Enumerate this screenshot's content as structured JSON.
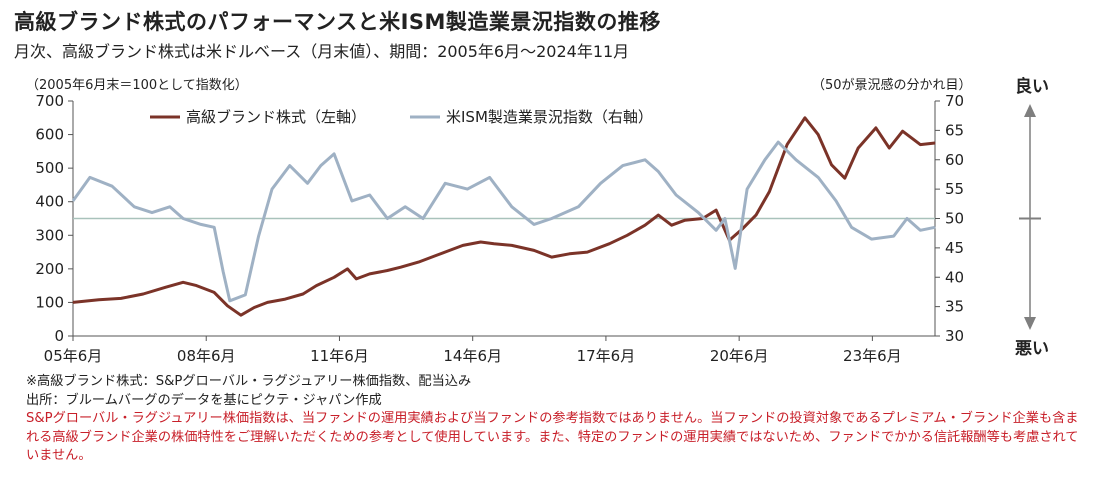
{
  "header": {
    "title": "高級ブランド株式のパフォーマンスと米ISM製造業景況指数の推移",
    "subtitle": "月次、高級ブランド株式は米ドルベース（月末値）、期間：2005年6月～2024年11月"
  },
  "axis_notes": {
    "left": "（2005年6月末＝100として指数化）",
    "right": "（50が景況感の分かれ目）",
    "good": "良い",
    "bad": "悪い"
  },
  "notes": {
    "line1": "※高級ブランド株式：S&Pグローバル・ラグジュアリー株価指数、配当込み",
    "line2": "出所：ブルームバーグのデータを基にピクテ・ジャパン作成",
    "disclaimer": "S&Pグローバル・ラグジュアリー株価指数は、当ファンドの運用実績および当ファンドの参考指数ではありません。当ファンドの投資対象であるプレミアム・ブランド企業も含まれる高級ブランド企業の株価特性をご理解いただくための参考として使用しています。また、特定のファンドの運用実績ではないため、ファンドでかかる信託報酬等も考慮されていません。"
  },
  "colors": {
    "luxury": "#7b3328",
    "ism": "#9fb1c4",
    "refline": "#a9c2bb",
    "arrow": "#7f7f7f"
  },
  "chart_data": {
    "type": "line",
    "x_start": "2005-06",
    "x_end": "2024-11",
    "x_ticks": [
      {
        "label": "05年6月",
        "t": 2005.42
      },
      {
        "label": "08年6月",
        "t": 2008.42
      },
      {
        "label": "11年6月",
        "t": 2011.42
      },
      {
        "label": "14年6月",
        "t": 2014.42
      },
      {
        "label": "17年6月",
        "t": 2017.42
      },
      {
        "label": "20年6月",
        "t": 2020.42
      },
      {
        "label": "23年6月",
        "t": 2023.42
      }
    ],
    "y_left": {
      "min": 0,
      "max": 700,
      "ticks": [
        0,
        100,
        200,
        300,
        400,
        500,
        600,
        700
      ]
    },
    "y_right": {
      "min": 30,
      "max": 70,
      "ticks": [
        30,
        35,
        40,
        45,
        50,
        55,
        60,
        65,
        70
      ]
    },
    "reference_line": {
      "axis": "right",
      "value": 50
    },
    "grid": false,
    "legend_position": "top-left",
    "series": [
      {
        "name": "高級ブランド株式（左軸）",
        "axis": "left",
        "points": [
          [
            2005.42,
            100
          ],
          [
            2006.0,
            108
          ],
          [
            2006.5,
            112
          ],
          [
            2007.0,
            125
          ],
          [
            2007.5,
            145
          ],
          [
            2007.9,
            160
          ],
          [
            2008.2,
            150
          ],
          [
            2008.6,
            130
          ],
          [
            2008.9,
            90
          ],
          [
            2009.2,
            62
          ],
          [
            2009.5,
            85
          ],
          [
            2009.8,
            100
          ],
          [
            2010.2,
            110
          ],
          [
            2010.6,
            125
          ],
          [
            2010.9,
            150
          ],
          [
            2011.3,
            175
          ],
          [
            2011.6,
            200
          ],
          [
            2011.8,
            170
          ],
          [
            2012.1,
            185
          ],
          [
            2012.5,
            195
          ],
          [
            2012.8,
            205
          ],
          [
            2013.2,
            220
          ],
          [
            2013.6,
            240
          ],
          [
            2013.9,
            255
          ],
          [
            2014.2,
            270
          ],
          [
            2014.6,
            280
          ],
          [
            2014.9,
            275
          ],
          [
            2015.3,
            270
          ],
          [
            2015.8,
            255
          ],
          [
            2016.2,
            235
          ],
          [
            2016.6,
            245
          ],
          [
            2017.0,
            250
          ],
          [
            2017.5,
            275
          ],
          [
            2017.9,
            300
          ],
          [
            2018.3,
            330
          ],
          [
            2018.6,
            360
          ],
          [
            2018.9,
            330
          ],
          [
            2019.2,
            345
          ],
          [
            2019.6,
            350
          ],
          [
            2019.9,
            375
          ],
          [
            2020.2,
            285
          ],
          [
            2020.5,
            320
          ],
          [
            2020.8,
            360
          ],
          [
            2021.1,
            430
          ],
          [
            2021.5,
            570
          ],
          [
            2021.9,
            650
          ],
          [
            2022.2,
            600
          ],
          [
            2022.5,
            510
          ],
          [
            2022.8,
            470
          ],
          [
            2023.1,
            560
          ],
          [
            2023.5,
            620
          ],
          [
            2023.8,
            560
          ],
          [
            2024.1,
            610
          ],
          [
            2024.5,
            570
          ],
          [
            2024.83,
            575
          ]
        ]
      },
      {
        "name": "米ISM製造業景況指数（右軸）",
        "axis": "right",
        "points": [
          [
            2005.42,
            53.0
          ],
          [
            2005.8,
            57.0
          ],
          [
            2006.3,
            55.5
          ],
          [
            2006.8,
            52.0
          ],
          [
            2007.2,
            51.0
          ],
          [
            2007.6,
            52.0
          ],
          [
            2007.9,
            50.0
          ],
          [
            2008.3,
            49.0
          ],
          [
            2008.6,
            48.5
          ],
          [
            2008.8,
            41.0
          ],
          [
            2008.95,
            36.0
          ],
          [
            2009.3,
            37.0
          ],
          [
            2009.6,
            47.0
          ],
          [
            2009.9,
            55.0
          ],
          [
            2010.3,
            59.0
          ],
          [
            2010.7,
            56.0
          ],
          [
            2011.0,
            59.0
          ],
          [
            2011.3,
            61.0
          ],
          [
            2011.7,
            53.0
          ],
          [
            2012.1,
            54.0
          ],
          [
            2012.5,
            50.0
          ],
          [
            2012.9,
            52.0
          ],
          [
            2013.3,
            50.0
          ],
          [
            2013.8,
            56.0
          ],
          [
            2014.3,
            55.0
          ],
          [
            2014.8,
            57.0
          ],
          [
            2015.3,
            52.0
          ],
          [
            2015.8,
            49.0
          ],
          [
            2016.2,
            50.0
          ],
          [
            2016.8,
            52.0
          ],
          [
            2017.3,
            56.0
          ],
          [
            2017.8,
            59.0
          ],
          [
            2018.3,
            60.0
          ],
          [
            2018.6,
            58.0
          ],
          [
            2019.0,
            54.0
          ],
          [
            2019.5,
            51.0
          ],
          [
            2019.9,
            48.0
          ],
          [
            2020.1,
            50.0
          ],
          [
            2020.33,
            41.5
          ],
          [
            2020.6,
            55.0
          ],
          [
            2021.0,
            60.0
          ],
          [
            2021.3,
            63.0
          ],
          [
            2021.7,
            60.0
          ],
          [
            2022.2,
            57.0
          ],
          [
            2022.6,
            53.0
          ],
          [
            2022.95,
            48.5
          ],
          [
            2023.4,
            46.5
          ],
          [
            2023.9,
            47.0
          ],
          [
            2024.2,
            50.0
          ],
          [
            2024.5,
            48.0
          ],
          [
            2024.83,
            48.5
          ]
        ]
      }
    ]
  }
}
